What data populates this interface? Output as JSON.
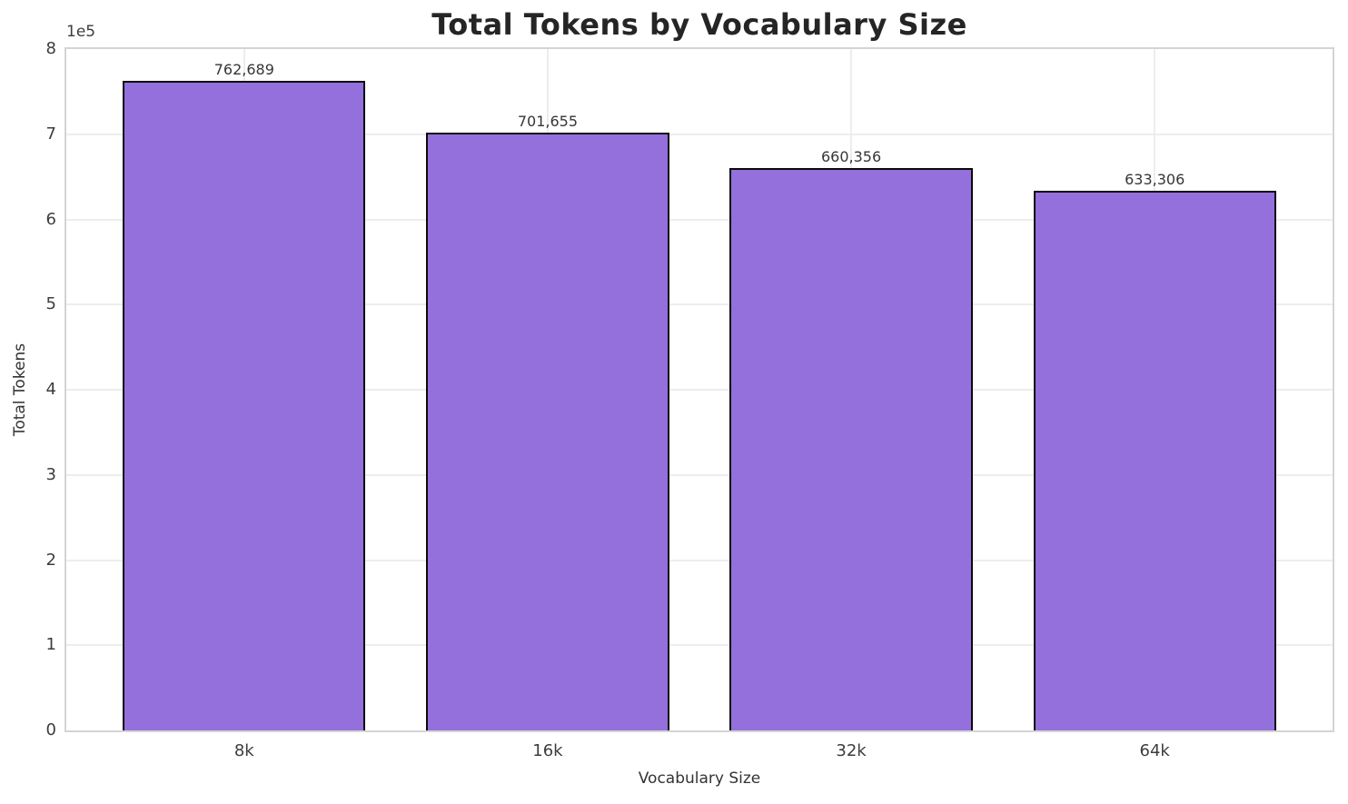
{
  "chart_data": {
    "type": "bar",
    "title": "Total Tokens by Vocabulary Size",
    "xlabel": "Vocabulary Size",
    "ylabel": "Total Tokens",
    "categories": [
      "8k",
      "16k",
      "32k",
      "64k"
    ],
    "values": [
      762689,
      701655,
      660356,
      633306
    ],
    "value_labels": [
      "762,689",
      "701,655",
      "660,356",
      "633,306"
    ],
    "ylim": [
      0,
      800000
    ],
    "y_tick_labels": [
      "0",
      "1",
      "2",
      "3",
      "4",
      "5",
      "6",
      "7",
      "8"
    ],
    "y_offset_label": "1e5",
    "grid": true,
    "legend_position": "none",
    "colors": {
      "bar_fill": "#9370DB",
      "bar_edge": "#0a0a0a",
      "grid_line": "#ededed",
      "spine": "#d4d4d4",
      "title_text": "#252525",
      "value_label_text": "#363636",
      "tick_text": "#3d3d3d",
      "axis_label_text": "#333333",
      "background": "#ffffff"
    }
  }
}
